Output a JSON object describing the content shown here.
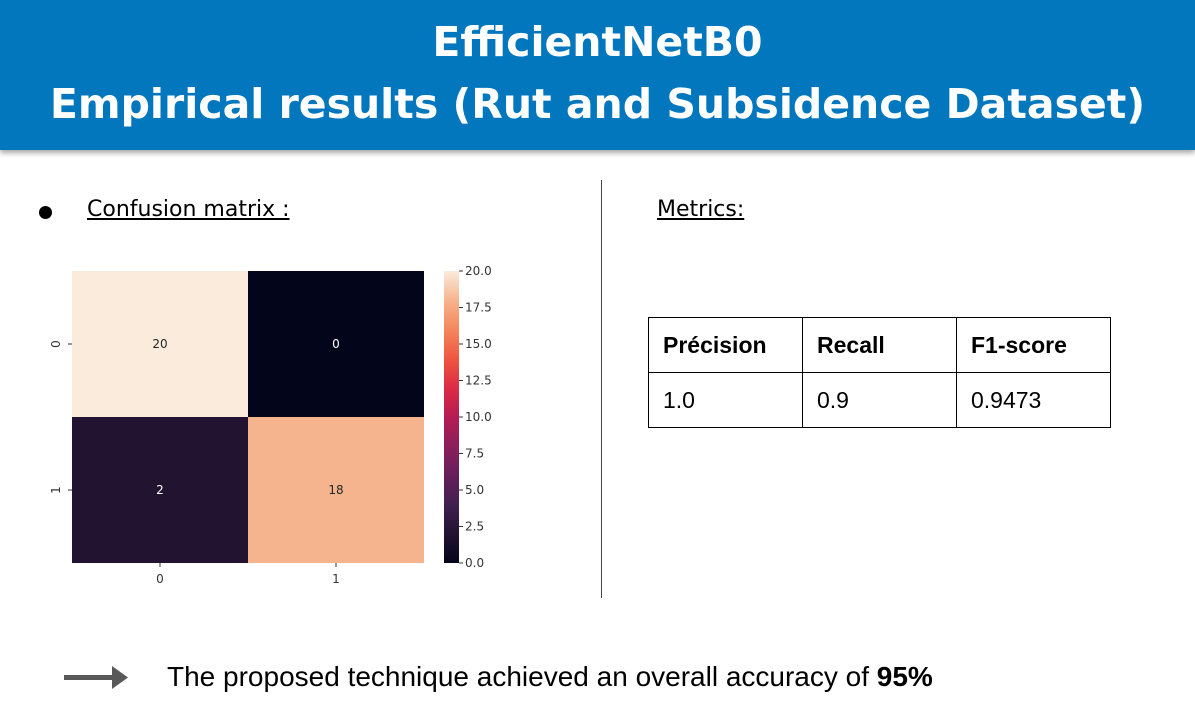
{
  "header": {
    "title_line1": "EfficientNetB0",
    "title_line2": "Empirical results (Rut and Subsidence Dataset)",
    "background": "#0277bd"
  },
  "left": {
    "heading": "Confusion matrix :"
  },
  "right": {
    "heading": "Metrics:"
  },
  "metrics": {
    "headers": [
      "Précision",
      "Recall",
      "F1-score"
    ],
    "values": [
      "1.0",
      "0.9",
      "0.9473"
    ]
  },
  "conclusion": {
    "text": "The proposed technique achieved an overall accuracy of ",
    "highlight": "95%"
  },
  "chart_data": {
    "type": "heatmap",
    "x_labels": [
      "0",
      "1"
    ],
    "y_labels": [
      "0",
      "1"
    ],
    "values": [
      [
        20,
        0
      ],
      [
        2,
        18
      ]
    ],
    "colorbar": {
      "min": 0.0,
      "max": 20.0,
      "ticks": [
        "0.0",
        "2.5",
        "5.0",
        "7.5",
        "10.0",
        "12.5",
        "15.0",
        "17.5",
        "20.0"
      ]
    },
    "colormap": "rocket"
  }
}
